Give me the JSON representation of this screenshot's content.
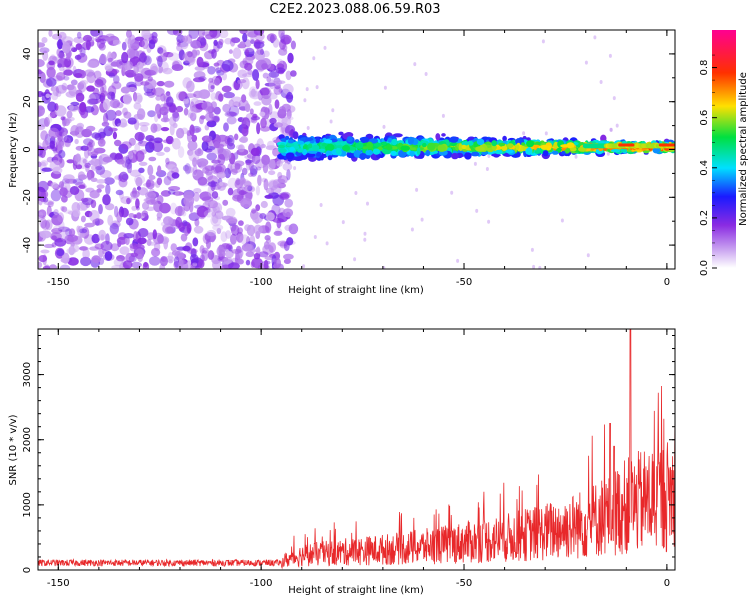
{
  "title": "C2E2.2023.088.06.59.R03",
  "colors": {
    "snr_line": "#e8282a",
    "noise_points": "#8a2be2"
  },
  "chart_data": [
    {
      "type": "heatmap",
      "name": "spectrogram",
      "xlabel": "Height of straight line (km)",
      "ylabel": "Frequency (Hz)",
      "xlim": [
        -155,
        2
      ],
      "ylim": [
        -50,
        50
      ],
      "xticks": [
        -150,
        -100,
        -50,
        0
      ],
      "yticks": [
        -40,
        -20,
        0,
        20,
        40
      ],
      "colorbar": {
        "label": "Normalized spectral amplitude",
        "range": [
          0,
          0.95
        ],
        "ticks": [
          0.0,
          0.2,
          0.4,
          0.6,
          0.8
        ],
        "colormap": "rainbow (purple-blue-cyan-green-yellow-red-magenta)"
      },
      "features": {
        "noise_region_x": [
          -155,
          -92
        ],
        "signal_band_x": [
          -95,
          2
        ],
        "signal_band_center_hz": 1,
        "signal_band_halfwidth_hz_start": 6,
        "signal_band_halfwidth_hz_end": 2
      },
      "grid": false
    },
    {
      "type": "line",
      "name": "snr",
      "xlabel": "Height of straight line (km)",
      "ylabel": "SNR (10 * v/v)",
      "xlim": [
        -155,
        2
      ],
      "ylim": [
        0,
        3700
      ],
      "xticks": [
        -150,
        -100,
        -50,
        0
      ],
      "yticks": [
        0,
        1000,
        2000,
        3000
      ],
      "envelope": {
        "x": [
          -155,
          -100,
          -95,
          -90,
          -80,
          -70,
          -60,
          -50,
          -40,
          -30,
          -20,
          -15,
          -10,
          -5,
          0,
          2
        ],
        "y": [
          100,
          120,
          200,
          350,
          420,
          480,
          550,
          650,
          750,
          900,
          1100,
          1300,
          1500,
          1650,
          1750,
          1850
        ]
      },
      "peaks": [
        {
          "x": -14,
          "y": 2250
        },
        {
          "x": -9,
          "y": 3700
        },
        {
          "x": -13,
          "y": 1900
        }
      ],
      "grid": false
    }
  ]
}
